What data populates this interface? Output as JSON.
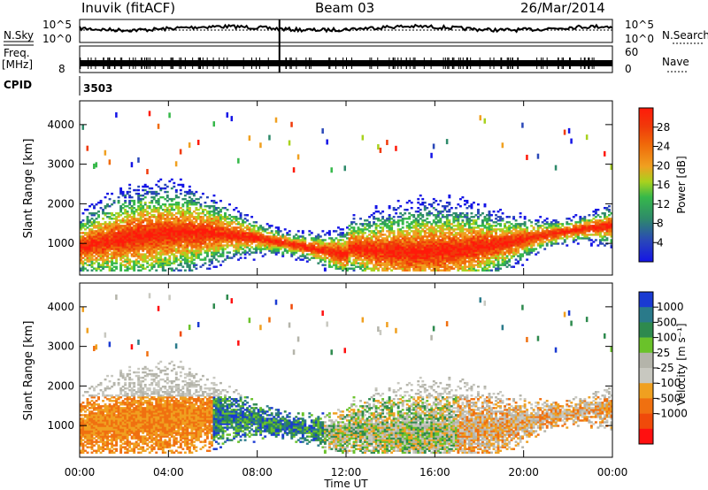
{
  "header": {
    "title": "Inuvik (fitACF)",
    "beam": "Beam 03",
    "date": "26/Mar/2014"
  },
  "colors": {
    "panel_border": "#000000",
    "power_scale": [
      "#1414e6",
      "#2a48b8",
      "#2e8a6a",
      "#36b84a",
      "#a8d21e",
      "#f0a020",
      "#f06a0a",
      "#f03a0a",
      "#ff1a0a"
    ],
    "velocity_scale": [
      "#1a3ad2",
      "#2a7a8a",
      "#2e8a4e",
      "#6ac22a",
      "#b4b4aa",
      "#c8c8c0",
      "#f0a020",
      "#f07010",
      "#f04a0a",
      "#ff1010"
    ]
  },
  "chart_data": [
    {
      "type": "line",
      "name": "noise-panel",
      "ylabel_left": "N.Sky",
      "ylabel_right": "N.Search",
      "left_ticks": [
        "10^5",
        "10^0"
      ],
      "right_ticks": [
        "10^5",
        "10^0"
      ]
    },
    {
      "type": "line",
      "name": "frequency-panel",
      "ylabel_left": "Freq.",
      "ylabel_left_unit": "[MHz]",
      "ylabel_right": "Nave",
      "left_ticks": [
        8
      ],
      "right_ticks": [
        60,
        0
      ]
    },
    {
      "type": "table",
      "name": "cpid-panel",
      "label": "CPID",
      "value": "3503"
    },
    {
      "type": "heatmap",
      "name": "power-panel",
      "ylabel": "Slant Range [km]",
      "y_ticks": [
        1000,
        2000,
        3000,
        4000
      ],
      "ylim": [
        200,
        4600
      ],
      "colorbar_label": "Power [dB]",
      "colorbar_ticks": [
        4,
        8,
        12,
        16,
        20,
        24,
        28
      ]
    },
    {
      "type": "heatmap",
      "name": "velocity-panel",
      "ylabel": "Slant Range [km]",
      "y_ticks": [
        1000,
        2000,
        3000,
        4000
      ],
      "ylim": [
        200,
        4600
      ],
      "colorbar_label": "Velocity [m s⁻¹]",
      "colorbar_ticks": [
        1000,
        500,
        100,
        25,
        -25,
        -100,
        -500,
        -1000
      ]
    },
    {
      "type": "axis",
      "name": "time-axis",
      "xlabel": "Time UT",
      "x_ticks": [
        "00:00",
        "04:00",
        "08:00",
        "12:00",
        "16:00",
        "20:00",
        "00:00"
      ],
      "xlim": [
        0,
        24
      ]
    }
  ]
}
